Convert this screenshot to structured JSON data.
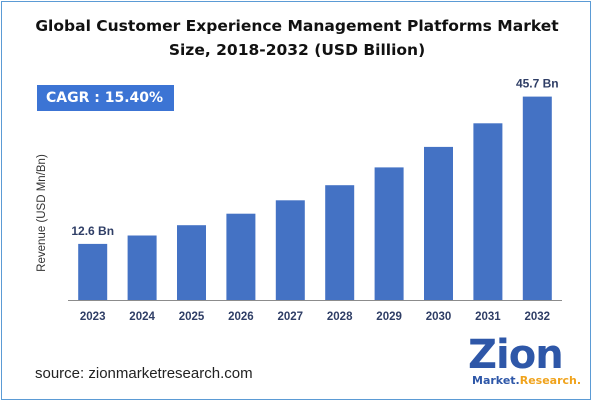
{
  "title_line1": "Global Customer Experience Management Platforms Market",
  "title_line2": "Size, 2018-2032 (USD Billion)",
  "cagr_label": "CAGR : 15.40%",
  "source": "source: zionmarketresearch.com",
  "logo": {
    "word": "Zion",
    "sub1": "Market.",
    "sub2": "Research."
  },
  "colors": {
    "bar": "#4472c4",
    "cagr_bg": "#3c74d4",
    "frame": "#5b9bd5",
    "logo": "#2e57a8",
    "logo_accent": "#f0a31c"
  },
  "chart_data": {
    "type": "bar",
    "title": "Global Customer Experience Management Platforms Market Size, 2018-2032 (USD Billion)",
    "ylabel": "Revenue (USD Mn/Bn)",
    "xlabel": "",
    "categories": [
      "2023",
      "2024",
      "2025",
      "2026",
      "2027",
      "2028",
      "2029",
      "2030",
      "2031",
      "2032"
    ],
    "values": [
      12.6,
      14.5,
      16.8,
      19.4,
      22.4,
      25.8,
      29.8,
      34.4,
      39.7,
      45.7
    ],
    "data_labels": [
      {
        "category": "2023",
        "text": "12.6 Bn"
      },
      {
        "category": "2032",
        "text": "45.7 Bn"
      }
    ],
    "ylim": [
      0,
      50
    ],
    "grid": false,
    "legend": "none"
  }
}
